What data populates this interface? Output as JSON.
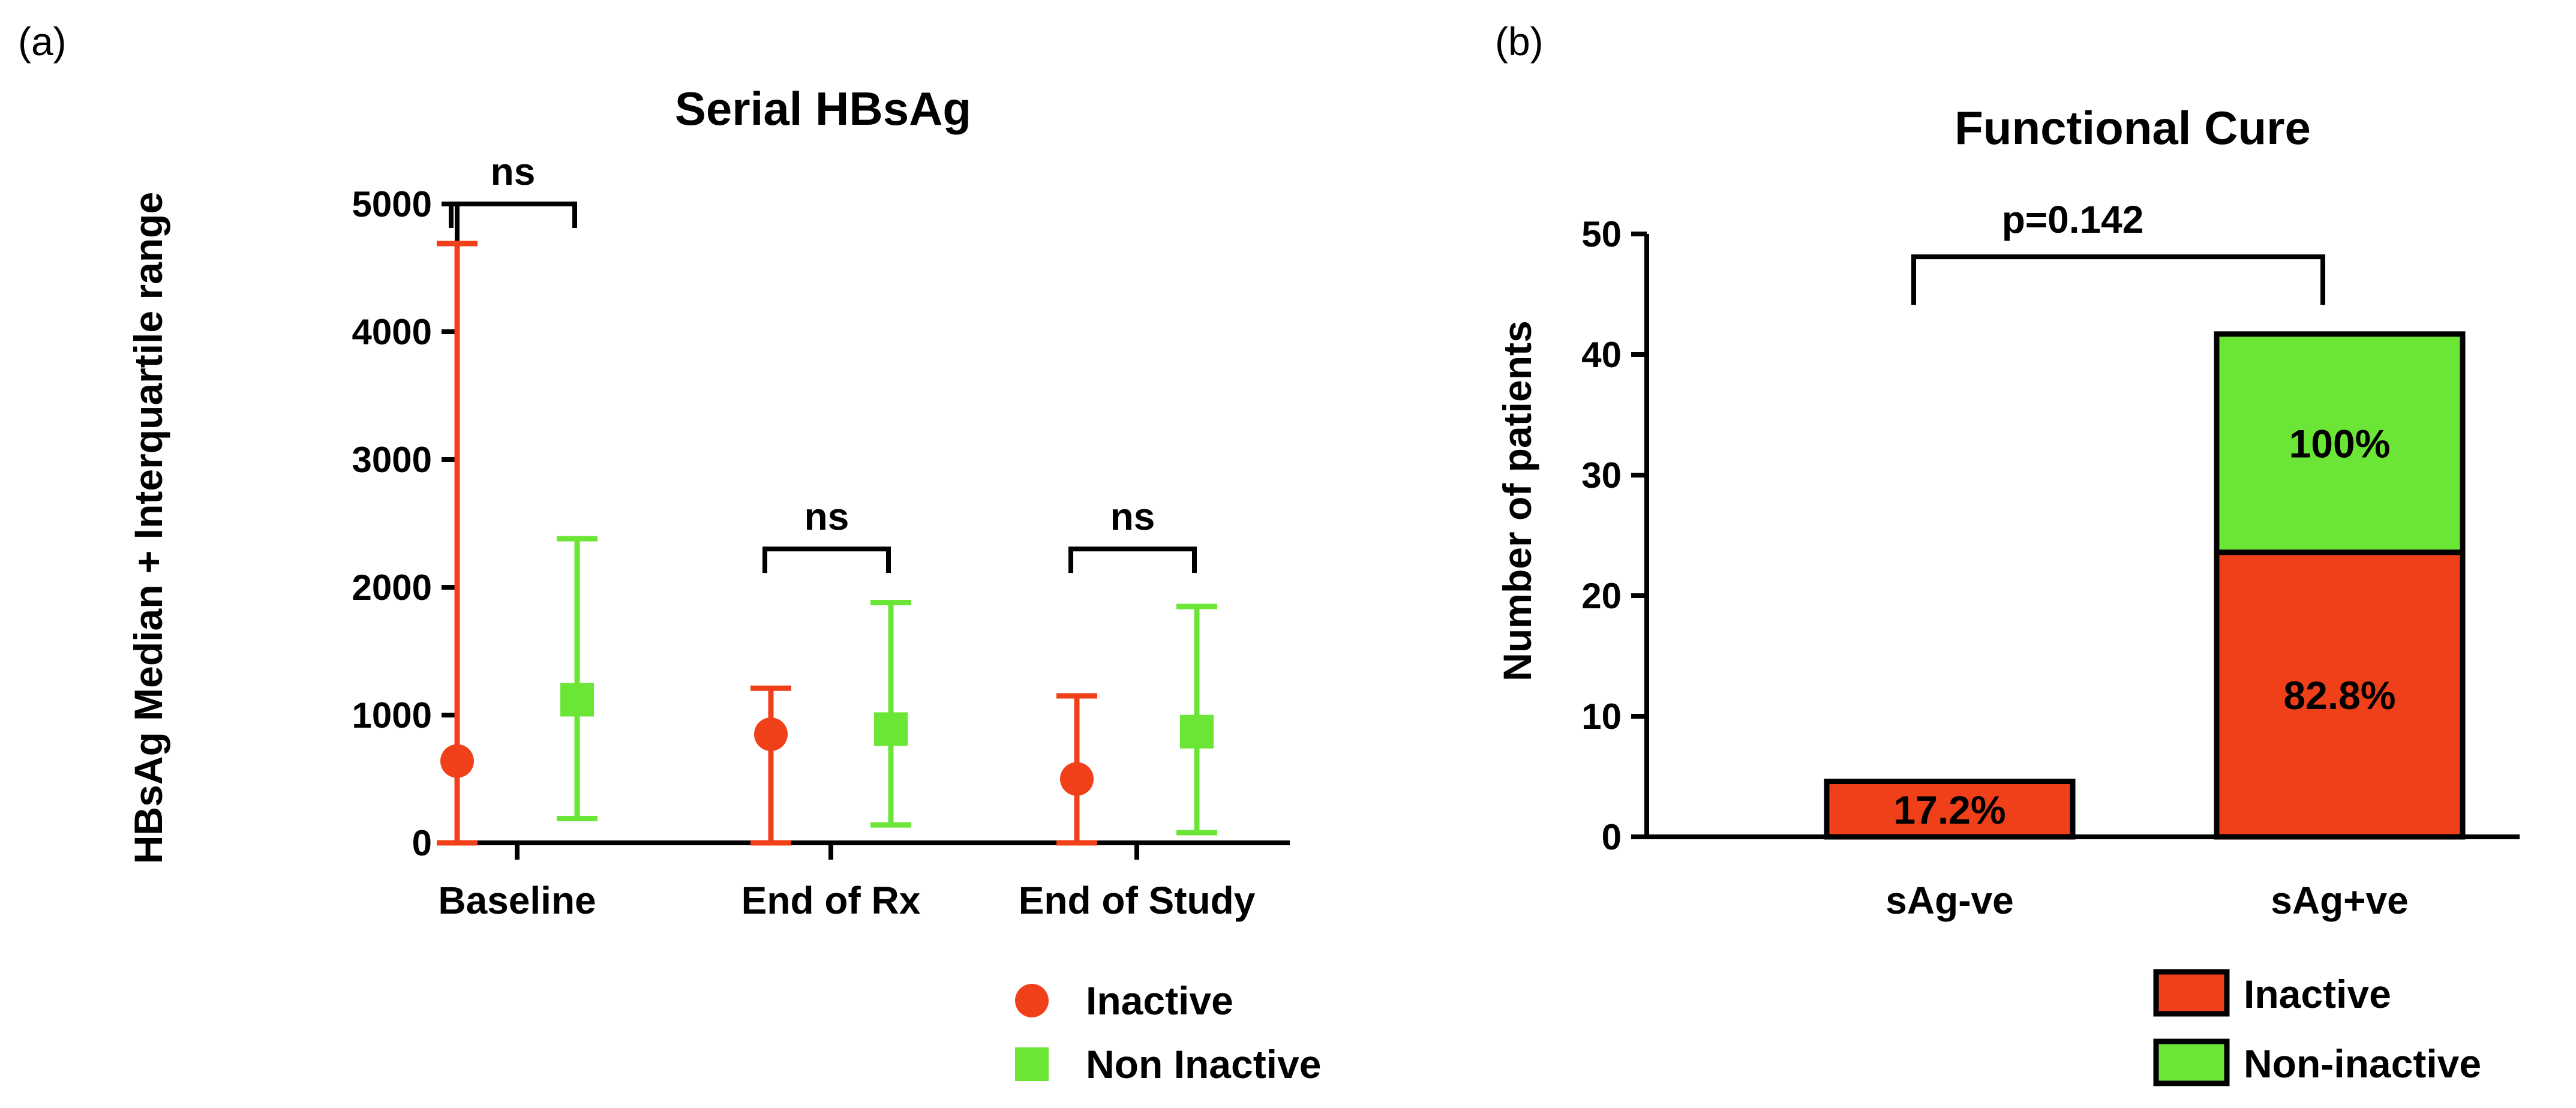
{
  "panels": {
    "a": {
      "label": "(a)"
    },
    "b": {
      "label": "(b)"
    }
  },
  "colors": {
    "inactive": "#f0401a",
    "non_inactive": "#6be536",
    "axis": "#000000"
  },
  "chart_data": [
    {
      "id": "a",
      "type": "scatter",
      "title": "Serial HBsAg",
      "xlabel": "",
      "ylabel": "HBsAg Median + Interquartile range",
      "ylim": [
        0,
        5000
      ],
      "yticks": [
        0,
        1000,
        2000,
        3000,
        4000,
        5000
      ],
      "categories": [
        "Baseline",
        "End of Rx",
        "End of Study"
      ],
      "series": [
        {
          "name": "Inactive",
          "marker": "circle",
          "median": [
            640,
            850,
            500
          ],
          "lower": [
            0,
            0,
            0
          ],
          "upper": [
            4690,
            1210,
            1150
          ]
        },
        {
          "name": "Non Inactive",
          "marker": "square",
          "median": [
            1120,
            890,
            870
          ],
          "lower": [
            190,
            140,
            80
          ],
          "upper": [
            2380,
            1880,
            1850
          ]
        }
      ],
      "significance": [
        {
          "category": "Baseline",
          "label": "ns",
          "y": 5000
        },
        {
          "category": "End of Rx",
          "label": "ns",
          "y": 2300
        },
        {
          "category": "End of Study",
          "label": "ns",
          "y": 2300
        }
      ],
      "legend": [
        "Inactive",
        "Non Inactive"
      ],
      "legend_position": "bottom-right"
    },
    {
      "id": "b",
      "type": "bar",
      "stacked": true,
      "title": "Functional Cure",
      "xlabel": "",
      "ylabel": "Number of patients",
      "ylim": [
        0,
        50
      ],
      "yticks": [
        0,
        10,
        20,
        30,
        40,
        50
      ],
      "categories": [
        "sAg-ve",
        "sAg+ve"
      ],
      "series": [
        {
          "name": "Inactive",
          "values": [
            4.6,
            23.6
          ],
          "labels": [
            "17.2%",
            "82.8%"
          ]
        },
        {
          "name": "Non-inactive",
          "values": [
            0,
            18.1
          ],
          "labels": [
            "",
            "100%"
          ]
        }
      ],
      "significance": {
        "label": "p=0.142",
        "y": 48.5
      },
      "legend": [
        "Inactive",
        "Non-inactive"
      ],
      "legend_position": "bottom-right"
    }
  ]
}
